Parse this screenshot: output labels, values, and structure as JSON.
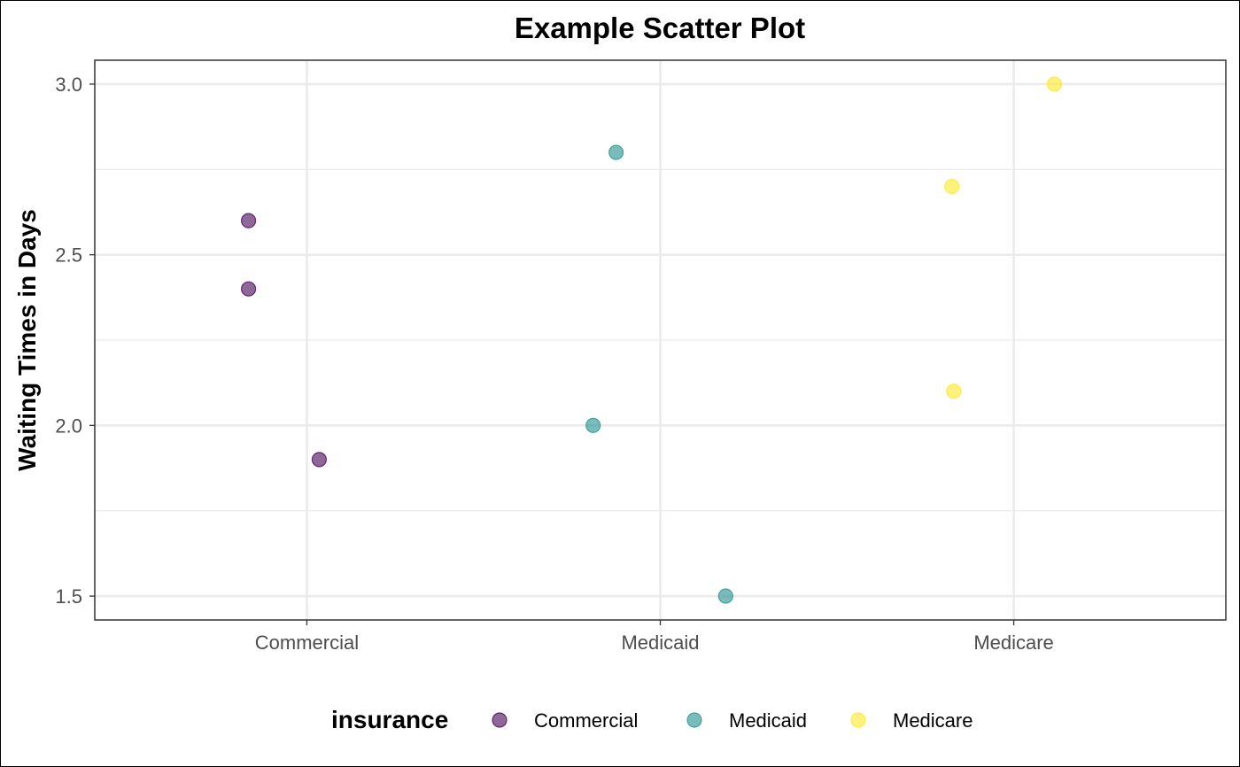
{
  "chart_data": {
    "type": "scatter",
    "title": "Example Scatter Plot",
    "xlabel": "",
    "ylabel": "Waiting Times in Days",
    "categories": [
      "Commercial",
      "Medicaid",
      "Medicare"
    ],
    "ylim": [
      1.43,
      3.07
    ],
    "yticks": [
      1.5,
      2.0,
      2.5,
      3.0
    ],
    "ytick_labels": [
      "1.5",
      "2.0",
      "2.5",
      "3.0"
    ],
    "grid": true,
    "legend": {
      "title": "insurance",
      "position": "bottom"
    },
    "series": [
      {
        "name": "Commercial",
        "color": "#440154",
        "points": [
          {
            "x": "Commercial",
            "jitter": -0.165,
            "y": 2.6
          },
          {
            "x": "Commercial",
            "jitter": -0.165,
            "y": 2.4
          },
          {
            "x": "Commercial",
            "jitter": 0.035,
            "y": 1.9
          }
        ]
      },
      {
        "name": "Medicaid",
        "color": "#21908C",
        "points": [
          {
            "x": "Medicaid",
            "jitter": -0.125,
            "y": 2.8
          },
          {
            "x": "Medicaid",
            "jitter": -0.19,
            "y": 2.0
          },
          {
            "x": "Medicaid",
            "jitter": 0.185,
            "y": 1.5
          }
        ]
      },
      {
        "name": "Medicare",
        "color": "#FDE725",
        "points": [
          {
            "x": "Medicare",
            "jitter": 0.115,
            "y": 3.0
          },
          {
            "x": "Medicare",
            "jitter": -0.175,
            "y": 2.7
          },
          {
            "x": "Medicare",
            "jitter": -0.17,
            "y": 2.1
          }
        ]
      }
    ]
  }
}
